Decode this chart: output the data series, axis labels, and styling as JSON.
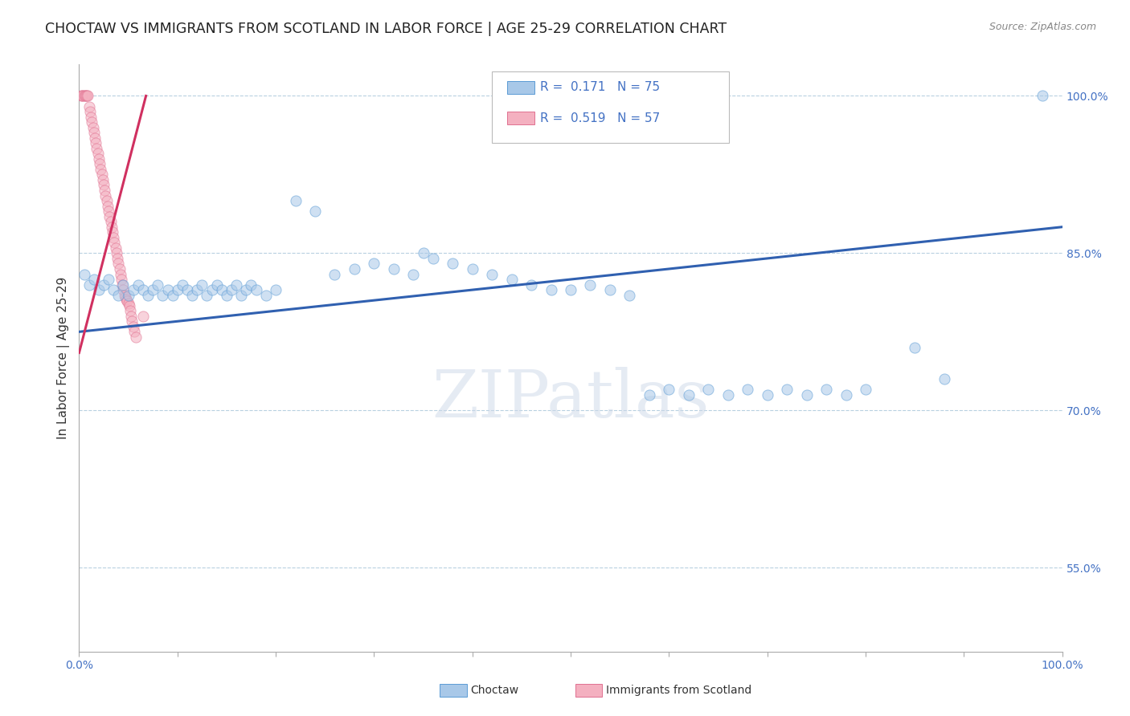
{
  "title": "CHOCTAW VS IMMIGRANTS FROM SCOTLAND IN LABOR FORCE | AGE 25-29 CORRELATION CHART",
  "source": "Source: ZipAtlas.com",
  "ylabel": "In Labor Force | Age 25-29",
  "xlim": [
    0.0,
    1.0
  ],
  "ylim": [
    0.47,
    1.03
  ],
  "yticks": [
    0.55,
    0.7,
    0.85,
    1.0
  ],
  "yticklabels": [
    "55.0%",
    "70.0%",
    "85.0%",
    "100.0%"
  ],
  "xtick_positions": [
    0.0,
    0.1,
    0.2,
    0.3,
    0.4,
    0.5,
    0.6,
    0.7,
    0.8,
    0.9,
    1.0
  ],
  "blue_scatter_x": [
    0.005,
    0.01,
    0.015,
    0.02,
    0.025,
    0.03,
    0.035,
    0.04,
    0.045,
    0.05,
    0.055,
    0.06,
    0.065,
    0.07,
    0.075,
    0.08,
    0.085,
    0.09,
    0.095,
    0.1,
    0.105,
    0.11,
    0.115,
    0.12,
    0.125,
    0.13,
    0.135,
    0.14,
    0.145,
    0.15,
    0.155,
    0.16,
    0.165,
    0.17,
    0.175,
    0.18,
    0.19,
    0.2,
    0.22,
    0.24,
    0.26,
    0.28,
    0.3,
    0.32,
    0.34,
    0.35,
    0.36,
    0.38,
    0.4,
    0.42,
    0.44,
    0.46,
    0.48,
    0.5,
    0.52,
    0.54,
    0.56,
    0.58,
    0.6,
    0.62,
    0.64,
    0.66,
    0.68,
    0.7,
    0.72,
    0.74,
    0.76,
    0.78,
    0.8,
    0.85,
    0.88,
    0.98
  ],
  "blue_scatter_y": [
    0.83,
    0.82,
    0.825,
    0.815,
    0.82,
    0.825,
    0.815,
    0.81,
    0.82,
    0.81,
    0.815,
    0.82,
    0.815,
    0.81,
    0.815,
    0.82,
    0.81,
    0.815,
    0.81,
    0.815,
    0.82,
    0.815,
    0.81,
    0.815,
    0.82,
    0.81,
    0.815,
    0.82,
    0.815,
    0.81,
    0.815,
    0.82,
    0.81,
    0.815,
    0.82,
    0.815,
    0.81,
    0.815,
    0.9,
    0.89,
    0.83,
    0.835,
    0.84,
    0.835,
    0.83,
    0.85,
    0.845,
    0.84,
    0.835,
    0.83,
    0.825,
    0.82,
    0.815,
    0.815,
    0.82,
    0.815,
    0.81,
    0.715,
    0.72,
    0.715,
    0.72,
    0.715,
    0.72,
    0.715,
    0.72,
    0.715,
    0.72,
    0.715,
    0.72,
    0.76,
    0.73,
    1.0
  ],
  "pink_scatter_x": [
    0.002,
    0.003,
    0.004,
    0.005,
    0.006,
    0.007,
    0.008,
    0.009,
    0.01,
    0.011,
    0.012,
    0.013,
    0.014,
    0.015,
    0.016,
    0.017,
    0.018,
    0.019,
    0.02,
    0.021,
    0.022,
    0.023,
    0.024,
    0.025,
    0.026,
    0.027,
    0.028,
    0.029,
    0.03,
    0.031,
    0.032,
    0.033,
    0.034,
    0.035,
    0.036,
    0.037,
    0.038,
    0.039,
    0.04,
    0.041,
    0.042,
    0.043,
    0.044,
    0.045,
    0.046,
    0.047,
    0.048,
    0.049,
    0.05,
    0.051,
    0.052,
    0.053,
    0.054,
    0.055,
    0.056,
    0.058,
    0.065
  ],
  "pink_scatter_y": [
    1.0,
    1.0,
    1.0,
    1.0,
    1.0,
    1.0,
    1.0,
    1.0,
    0.99,
    0.985,
    0.98,
    0.975,
    0.97,
    0.965,
    0.96,
    0.955,
    0.95,
    0.945,
    0.94,
    0.935,
    0.93,
    0.925,
    0.92,
    0.915,
    0.91,
    0.905,
    0.9,
    0.895,
    0.89,
    0.885,
    0.88,
    0.875,
    0.87,
    0.865,
    0.86,
    0.855,
    0.85,
    0.845,
    0.84,
    0.835,
    0.83,
    0.825,
    0.82,
    0.815,
    0.81,
    0.808,
    0.806,
    0.804,
    0.802,
    0.8,
    0.795,
    0.79,
    0.785,
    0.78,
    0.775,
    0.77,
    0.79
  ],
  "blue_line_x": [
    0.0,
    1.0
  ],
  "blue_line_y": [
    0.775,
    0.875
  ],
  "pink_line_x": [
    0.0,
    0.068
  ],
  "pink_line_y": [
    0.755,
    1.0
  ],
  "blue_scatter_color": "#a8c8e8",
  "blue_scatter_edge": "#5b9bd5",
  "pink_scatter_color": "#f4b0c0",
  "pink_scatter_edge": "#e07090",
  "blue_line_color": "#3060b0",
  "pink_line_color": "#d03060",
  "grid_color": "#b8d0e0",
  "tick_color": "#4472c4",
  "bg_color": "#ffffff",
  "watermark_text": "ZIPatlas",
  "watermark_color": "#ccd8e8",
  "title_color": "#222222",
  "source_color": "#888888"
}
